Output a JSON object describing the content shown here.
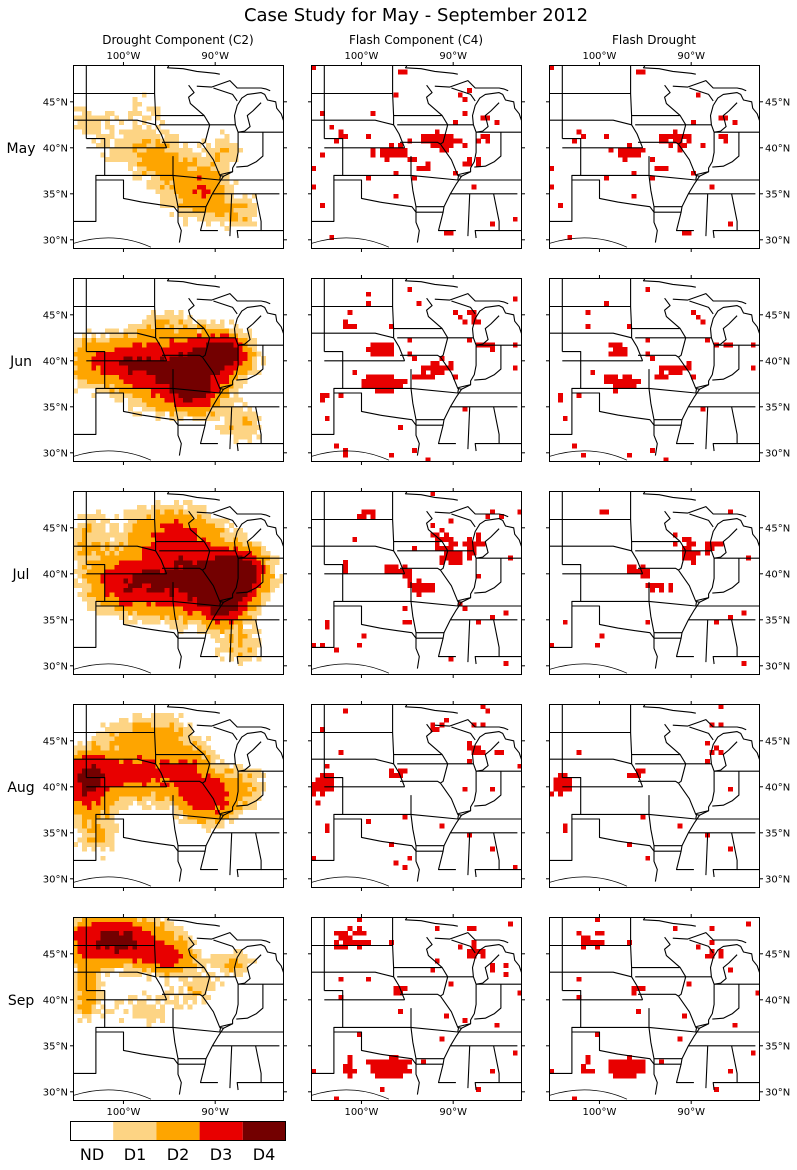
{
  "title": "Case Study for May - September 2012",
  "columns": [
    "Drought Component (C2)",
    "Flash Component (C4)",
    "Flash Drought"
  ],
  "rows": [
    "May",
    "Jun",
    "Jul",
    "Aug",
    "Sep"
  ],
  "lon_ticks": [
    "100°W",
    "90°W"
  ],
  "lat_ticks": [
    "45°N",
    "40°N",
    "35°N",
    "30°N"
  ],
  "legend": {
    "labels": [
      "ND",
      "D1",
      "D2",
      "D3",
      "D4"
    ],
    "colors": [
      "#ffffff",
      "#fdd484",
      "#fea500",
      "#e80000",
      "#730000"
    ]
  },
  "flash_color": "#e80000"
}
